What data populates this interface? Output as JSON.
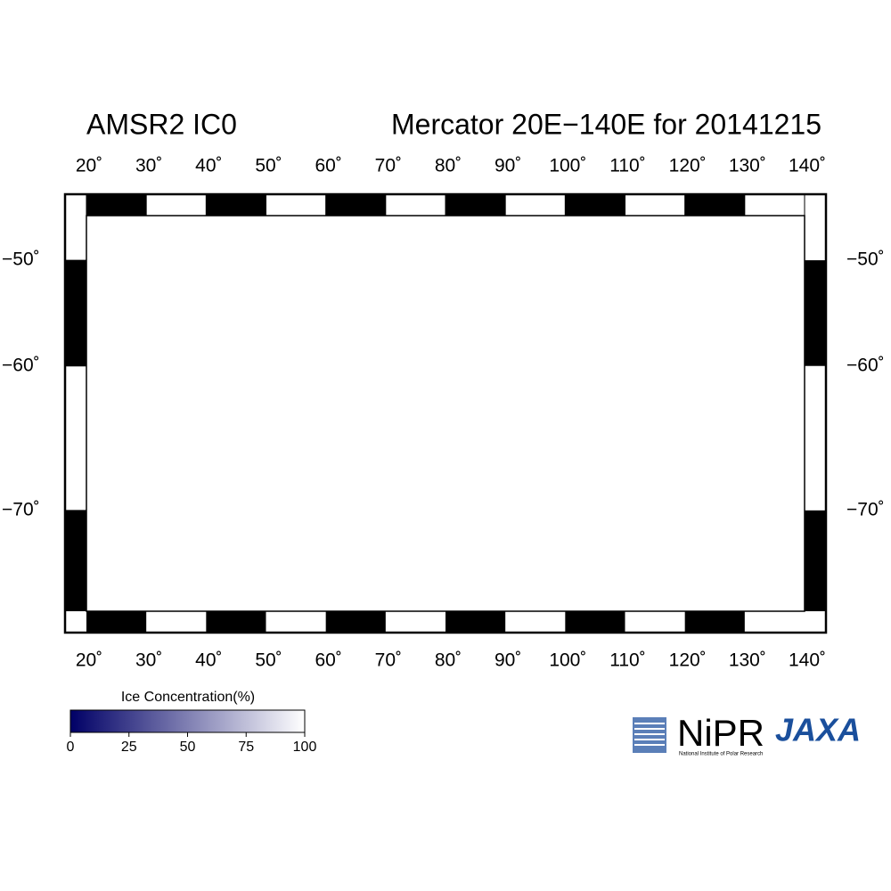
{
  "map": {
    "title_left": "AMSR2 IC0",
    "title_right": "Mercator 20E−140E for 20141215",
    "projection": "mercator",
    "lonlim": [
      20,
      140
    ],
    "latlim": [
      -45,
      -75
    ],
    "lon_ticks": [
      {
        "value": 20,
        "label": "20˚"
      },
      {
        "value": 30,
        "label": "30˚"
      },
      {
        "value": 40,
        "label": "40˚"
      },
      {
        "value": 50,
        "label": "50˚"
      },
      {
        "value": 60,
        "label": "60˚"
      },
      {
        "value": 70,
        "label": "70˚"
      },
      {
        "value": 80,
        "label": "80˚"
      },
      {
        "value": 90,
        "label": "90˚"
      },
      {
        "value": 100,
        "label": "100˚"
      },
      {
        "value": 110,
        "label": "110˚"
      },
      {
        "value": 120,
        "label": "120˚"
      },
      {
        "value": 130,
        "label": "130˚"
      },
      {
        "value": 140,
        "label": "140˚"
      }
    ],
    "lat_ticks": [
      {
        "value": -50,
        "label": "−50˚"
      },
      {
        "value": -60,
        "label": "−60˚"
      },
      {
        "value": -70,
        "label": "−70˚"
      }
    ],
    "lon_grid": [
      20,
      25,
      30,
      35,
      40,
      45,
      50,
      55,
      60,
      65,
      70,
      75,
      80,
      85,
      90,
      95,
      100,
      105,
      110,
      115,
      120,
      125,
      130,
      135,
      140
    ],
    "lat_grid": [
      -50,
      -55,
      -60,
      -65,
      -70
    ],
    "colorbar": {
      "label": "Ice Concentration(%)",
      "range": [
        0,
        100
      ],
      "ticks": [
        0,
        25,
        50,
        75,
        100
      ],
      "colors": [
        "#000066",
        "#ffffff"
      ]
    },
    "logos": {
      "nipr": "NiPR",
      "nipr_full": "National Institute of Polar Research",
      "jaxa": "JAXA"
    }
  }
}
